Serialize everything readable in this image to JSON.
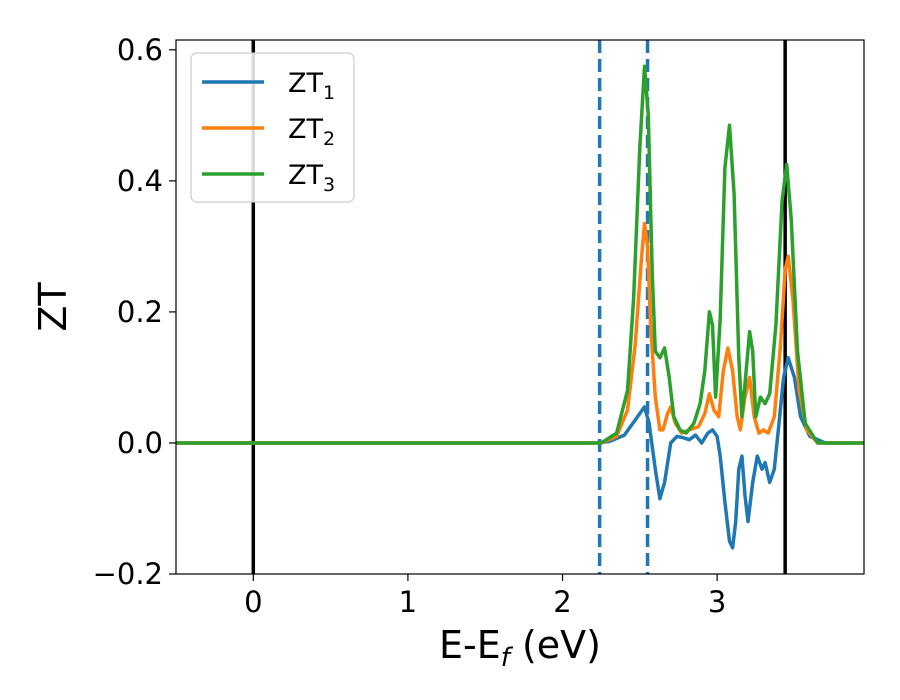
{
  "chart_data": {
    "type": "line",
    "xlabel_main": "E-E",
    "xlabel_sub": "f",
    "xlabel_unit": " (eV)",
    "ylabel": "ZT",
    "xlim": [
      -0.5,
      3.95
    ],
    "ylim": [
      -0.2,
      0.615
    ],
    "x_ticks": [
      0,
      1,
      2,
      3
    ],
    "x_tick_labels": [
      "0",
      "1",
      "2",
      "3"
    ],
    "y_ticks": [
      -0.2,
      0.0,
      0.2,
      0.4,
      0.6
    ],
    "y_tick_labels": [
      "−0.2",
      "0.0",
      "0.2",
      "0.4",
      "0.6"
    ],
    "grid": false,
    "legend_position": "top-left",
    "vertical_lines": [
      {
        "x": 0.0,
        "style": "solid",
        "color": "#000000"
      },
      {
        "x": 3.44,
        "style": "solid",
        "color": "#000000"
      },
      {
        "x": 2.24,
        "style": "dashed",
        "color": "#1f77b4"
      },
      {
        "x": 2.55,
        "style": "dashed",
        "color": "#1f77b4"
      }
    ],
    "series": [
      {
        "name": "ZT",
        "name_sub": "1",
        "color": "#1f77b4",
        "points": [
          [
            -0.5,
            0
          ],
          [
            2.2,
            0
          ],
          [
            2.3,
            0.002
          ],
          [
            2.4,
            0.012
          ],
          [
            2.47,
            0.035
          ],
          [
            2.53,
            0.055
          ],
          [
            2.56,
            0.03
          ],
          [
            2.6,
            -0.04
          ],
          [
            2.63,
            -0.085
          ],
          [
            2.66,
            -0.06
          ],
          [
            2.7,
            0.0
          ],
          [
            2.74,
            0.01
          ],
          [
            2.78,
            0.008
          ],
          [
            2.82,
            0.005
          ],
          [
            2.86,
            0.012
          ],
          [
            2.9,
            0.0
          ],
          [
            2.94,
            0.015
          ],
          [
            2.97,
            0.02
          ],
          [
            3.0,
            0.01
          ],
          [
            3.02,
            -0.02
          ],
          [
            3.05,
            -0.09
          ],
          [
            3.08,
            -0.15
          ],
          [
            3.1,
            -0.16
          ],
          [
            3.12,
            -0.12
          ],
          [
            3.14,
            -0.04
          ],
          [
            3.16,
            -0.02
          ],
          [
            3.18,
            -0.08
          ],
          [
            3.2,
            -0.12
          ],
          [
            3.23,
            -0.06
          ],
          [
            3.26,
            -0.02
          ],
          [
            3.29,
            -0.04
          ],
          [
            3.31,
            -0.03
          ],
          [
            3.34,
            -0.06
          ],
          [
            3.37,
            -0.04
          ],
          [
            3.4,
            0.03
          ],
          [
            3.43,
            0.1
          ],
          [
            3.46,
            0.13
          ],
          [
            3.5,
            0.1
          ],
          [
            3.54,
            0.04
          ],
          [
            3.6,
            0.01
          ],
          [
            3.7,
            0.0
          ],
          [
            3.95,
            0
          ]
        ]
      },
      {
        "name": "ZT",
        "name_sub": "2",
        "color": "#ff7f0e",
        "points": [
          [
            -0.5,
            0
          ],
          [
            2.25,
            0
          ],
          [
            2.35,
            0.01
          ],
          [
            2.42,
            0.05
          ],
          [
            2.47,
            0.15
          ],
          [
            2.51,
            0.28
          ],
          [
            2.53,
            0.335
          ],
          [
            2.55,
            0.3
          ],
          [
            2.57,
            0.18
          ],
          [
            2.6,
            0.07
          ],
          [
            2.63,
            0.02
          ],
          [
            2.65,
            0.02
          ],
          [
            2.68,
            0.045
          ],
          [
            2.7,
            0.055
          ],
          [
            2.73,
            0.03
          ],
          [
            2.77,
            0.015
          ],
          [
            2.82,
            0.02
          ],
          [
            2.88,
            0.025
          ],
          [
            2.92,
            0.045
          ],
          [
            2.95,
            0.075
          ],
          [
            2.98,
            0.05
          ],
          [
            3.01,
            0.04
          ],
          [
            3.04,
            0.11
          ],
          [
            3.07,
            0.145
          ],
          [
            3.1,
            0.11
          ],
          [
            3.13,
            0.04
          ],
          [
            3.15,
            0.02
          ],
          [
            3.18,
            0.07
          ],
          [
            3.21,
            0.1
          ],
          [
            3.24,
            0.04
          ],
          [
            3.27,
            0.015
          ],
          [
            3.3,
            0.02
          ],
          [
            3.33,
            0.015
          ],
          [
            3.37,
            0.04
          ],
          [
            3.41,
            0.15
          ],
          [
            3.44,
            0.265
          ],
          [
            3.46,
            0.285
          ],
          [
            3.49,
            0.22
          ],
          [
            3.53,
            0.08
          ],
          [
            3.58,
            0.02
          ],
          [
            3.65,
            0.0
          ],
          [
            3.95,
            0
          ]
        ]
      },
      {
        "name": "ZT",
        "name_sub": "3",
        "color": "#2ca02c",
        "points": [
          [
            -0.5,
            0
          ],
          [
            2.25,
            0
          ],
          [
            2.35,
            0.015
          ],
          [
            2.42,
            0.08
          ],
          [
            2.46,
            0.22
          ],
          [
            2.5,
            0.45
          ],
          [
            2.53,
            0.575
          ],
          [
            2.555,
            0.5
          ],
          [
            2.58,
            0.26
          ],
          [
            2.6,
            0.14
          ],
          [
            2.63,
            0.13
          ],
          [
            2.66,
            0.145
          ],
          [
            2.69,
            0.1
          ],
          [
            2.72,
            0.04
          ],
          [
            2.76,
            0.02
          ],
          [
            2.8,
            0.015
          ],
          [
            2.85,
            0.03
          ],
          [
            2.89,
            0.06
          ],
          [
            2.92,
            0.11
          ],
          [
            2.95,
            0.2
          ],
          [
            2.97,
            0.18
          ],
          [
            2.99,
            0.07
          ],
          [
            3.02,
            0.19
          ],
          [
            3.05,
            0.42
          ],
          [
            3.08,
            0.485
          ],
          [
            3.11,
            0.38
          ],
          [
            3.14,
            0.13
          ],
          [
            3.16,
            0.04
          ],
          [
            3.18,
            0.09
          ],
          [
            3.21,
            0.17
          ],
          [
            3.23,
            0.14
          ],
          [
            3.25,
            0.04
          ],
          [
            3.28,
            0.07
          ],
          [
            3.31,
            0.06
          ],
          [
            3.34,
            0.075
          ],
          [
            3.38,
            0.18
          ],
          [
            3.42,
            0.37
          ],
          [
            3.45,
            0.425
          ],
          [
            3.48,
            0.34
          ],
          [
            3.52,
            0.14
          ],
          [
            3.57,
            0.03
          ],
          [
            3.65,
            0.0
          ],
          [
            3.95,
            0
          ]
        ]
      }
    ]
  }
}
